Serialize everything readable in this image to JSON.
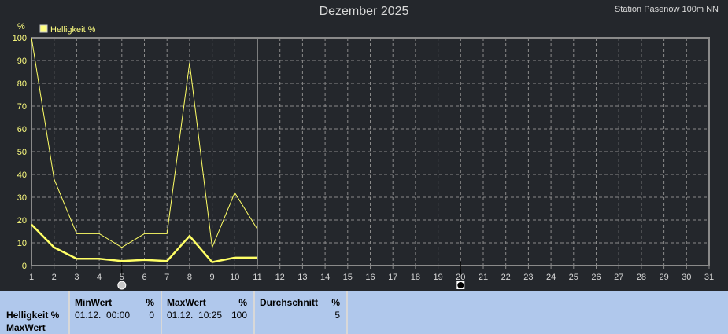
{
  "header": {
    "title": "Dezember 2025",
    "station": "Station Pasenow 100m NN"
  },
  "chart_data": {
    "type": "line",
    "title": "Dezember 2025",
    "ylabel": "%",
    "ylim": [
      0,
      100
    ],
    "xlim": [
      1,
      31
    ],
    "x_ticks": [
      1,
      2,
      3,
      4,
      5,
      6,
      7,
      8,
      9,
      10,
      11,
      12,
      13,
      14,
      15,
      16,
      17,
      18,
      19,
      20,
      21,
      22,
      23,
      24,
      25,
      26,
      27,
      28,
      29,
      30,
      31
    ],
    "y_ticks": [
      0,
      10,
      20,
      30,
      40,
      50,
      60,
      70,
      80,
      90,
      100
    ],
    "grid": true,
    "legend": {
      "label": "Helligkeit %",
      "position": "top-left"
    },
    "x": [
      1,
      2,
      3,
      4,
      5,
      6,
      7,
      8,
      9,
      10,
      11
    ],
    "series": [
      {
        "name": "Helligkeit %",
        "role": "max",
        "values": [
          100,
          38,
          14,
          14,
          8,
          14,
          14,
          89,
          8,
          32,
          16
        ],
        "color": "#ffff66"
      },
      {
        "role": "avg",
        "values": [
          18,
          8,
          3,
          3,
          2,
          2.5,
          2,
          13,
          1.5,
          3.5,
          3.5
        ],
        "color": "#ffff66"
      }
    ],
    "markers": [
      {
        "day": 5,
        "type": "today-marker"
      },
      {
        "day": 20,
        "type": "moon-marker"
      }
    ],
    "current_line_day": 11
  },
  "panel": {
    "label_line1": "Helligkeit %",
    "label_line2": "MaxWert",
    "min": {
      "header": "MinWert",
      "unit": "%",
      "time": "01.12.  00:00",
      "value": "0"
    },
    "max": {
      "header": "MaxWert",
      "unit": "%",
      "time": "01.12.  10:25",
      "value": "100"
    },
    "avg": {
      "header": "Durchschnitt",
      "unit": "%",
      "value": "5"
    }
  }
}
